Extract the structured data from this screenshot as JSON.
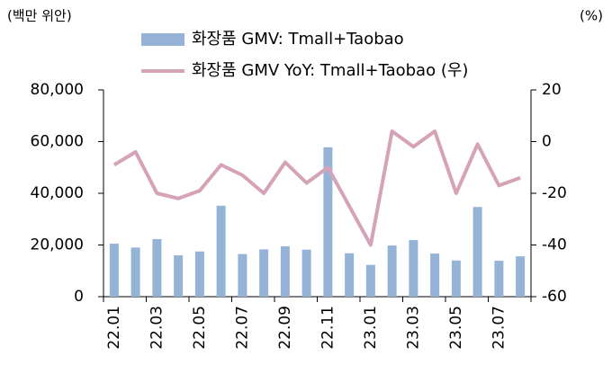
{
  "chart_data": {
    "type": "bar+line",
    "y_unit": "(백만 위안)",
    "y2_unit": "(%)",
    "categories": [
      "22.01",
      null,
      "22.03",
      null,
      "22.05",
      null,
      "22.07",
      null,
      "22.09",
      null,
      "22.11",
      null,
      "23.01",
      null,
      "23.03",
      null,
      "23.05",
      null,
      "23.07",
      null
    ],
    "series": [
      {
        "name": "화장품 GMV: Tmall+Taobao",
        "type": "bar",
        "color": "#95b3d7",
        "values": [
          20500,
          19000,
          22300,
          16000,
          17500,
          35200,
          16500,
          18300,
          19500,
          18200,
          57800,
          16800,
          12300,
          19800,
          21900,
          16700,
          14000,
          34700,
          13900,
          15600
        ]
      },
      {
        "name": "화장품 GMV YoY: Tmall+Taobao (우)",
        "type": "line",
        "axis": "y2",
        "color": "#d6a2b8",
        "values": [
          -9,
          -4,
          -20,
          -22,
          -19,
          -9,
          -13,
          -20,
          -8,
          -16,
          -10,
          -25,
          -40,
          4,
          -2,
          4,
          -20,
          -1,
          -17,
          -14
        ]
      }
    ],
    "ylim": [
      0,
      80000
    ],
    "yticks": [
      0,
      {
        "value": 20000,
        "label": "20,000"
      },
      {
        "value": 40000,
        "label": "40,000"
      },
      {
        "value": 60000,
        "label": "60,000"
      },
      {
        "value": 80000,
        "label": "80,000"
      }
    ],
    "y2lim": [
      -60,
      20
    ],
    "y2ticks": [
      -60,
      -40,
      -20,
      0,
      20
    ]
  }
}
